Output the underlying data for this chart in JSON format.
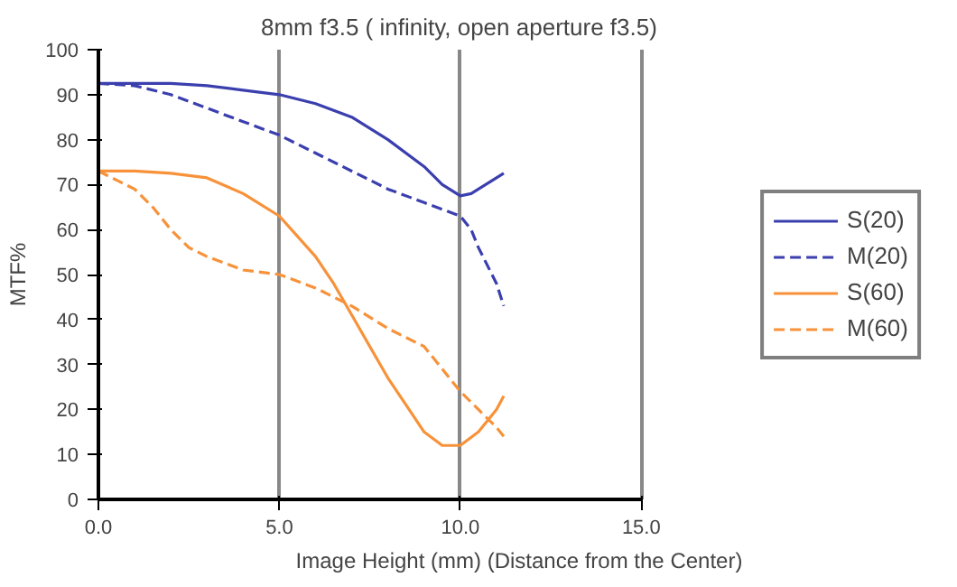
{
  "chart_data": {
    "type": "line",
    "title": "8mm f3.5 ( infinity, open aperture f3.5)",
    "xlabel": "Image Height (mm) (Distance from the Center)",
    "ylabel": "MTF%",
    "xlim": [
      0,
      15
    ],
    "ylim": [
      0,
      100
    ],
    "xticks": [
      {
        "value": 0,
        "label": "0.0"
      },
      {
        "value": 5,
        "label": "5.0"
      },
      {
        "value": 10,
        "label": "10.0"
      },
      {
        "value": 15,
        "label": "15.0"
      }
    ],
    "yticks": [
      0,
      10,
      20,
      30,
      40,
      50,
      60,
      70,
      80,
      90,
      100
    ],
    "grid": "x",
    "legend": "right",
    "marker": "none",
    "series": [
      {
        "name": "S(20)",
        "color": "#3b3fae",
        "line_style": "solid",
        "x": [
          0,
          1,
          2,
          3,
          4,
          5,
          6,
          7,
          8,
          9,
          9.5,
          10,
          10.3,
          11.2
        ],
        "values": [
          92.5,
          92.5,
          92.5,
          92,
          91,
          90,
          88,
          85,
          80,
          74,
          70,
          67.5,
          68,
          72.5
        ]
      },
      {
        "name": "M(20)",
        "color": "#3b3fae",
        "line_style": "dashed",
        "x": [
          0,
          1,
          2,
          3,
          4,
          5,
          6,
          7,
          8,
          9,
          9.5,
          10,
          10.3,
          10.5,
          11,
          11.2
        ],
        "values": [
          92.5,
          92,
          90,
          87,
          84,
          81,
          77,
          73,
          69,
          66,
          64.5,
          63,
          60,
          56,
          48,
          43
        ]
      },
      {
        "name": "S(60)",
        "color": "#f7923a",
        "line_style": "solid",
        "x": [
          0,
          1,
          2,
          3,
          4,
          5,
          6,
          6.5,
          7,
          7.5,
          8,
          8.5,
          9,
          9.5,
          10,
          10.5,
          11,
          11.2
        ],
        "values": [
          73,
          73,
          72.5,
          71.5,
          68,
          63,
          54,
          48,
          41,
          34,
          27,
          21,
          15,
          12,
          12,
          15,
          20,
          23
        ]
      },
      {
        "name": "M(60)",
        "color": "#f7923a",
        "line_style": "dashed",
        "x": [
          0,
          0.5,
          1,
          1.5,
          2,
          2.5,
          3,
          4,
          5,
          6,
          7,
          8,
          9,
          9.5,
          10,
          10.5,
          11,
          11.2
        ],
        "values": [
          73,
          71,
          69,
          65,
          60,
          56,
          54,
          51,
          50,
          47,
          43,
          38,
          34,
          29,
          24,
          20,
          16,
          14
        ]
      }
    ]
  }
}
